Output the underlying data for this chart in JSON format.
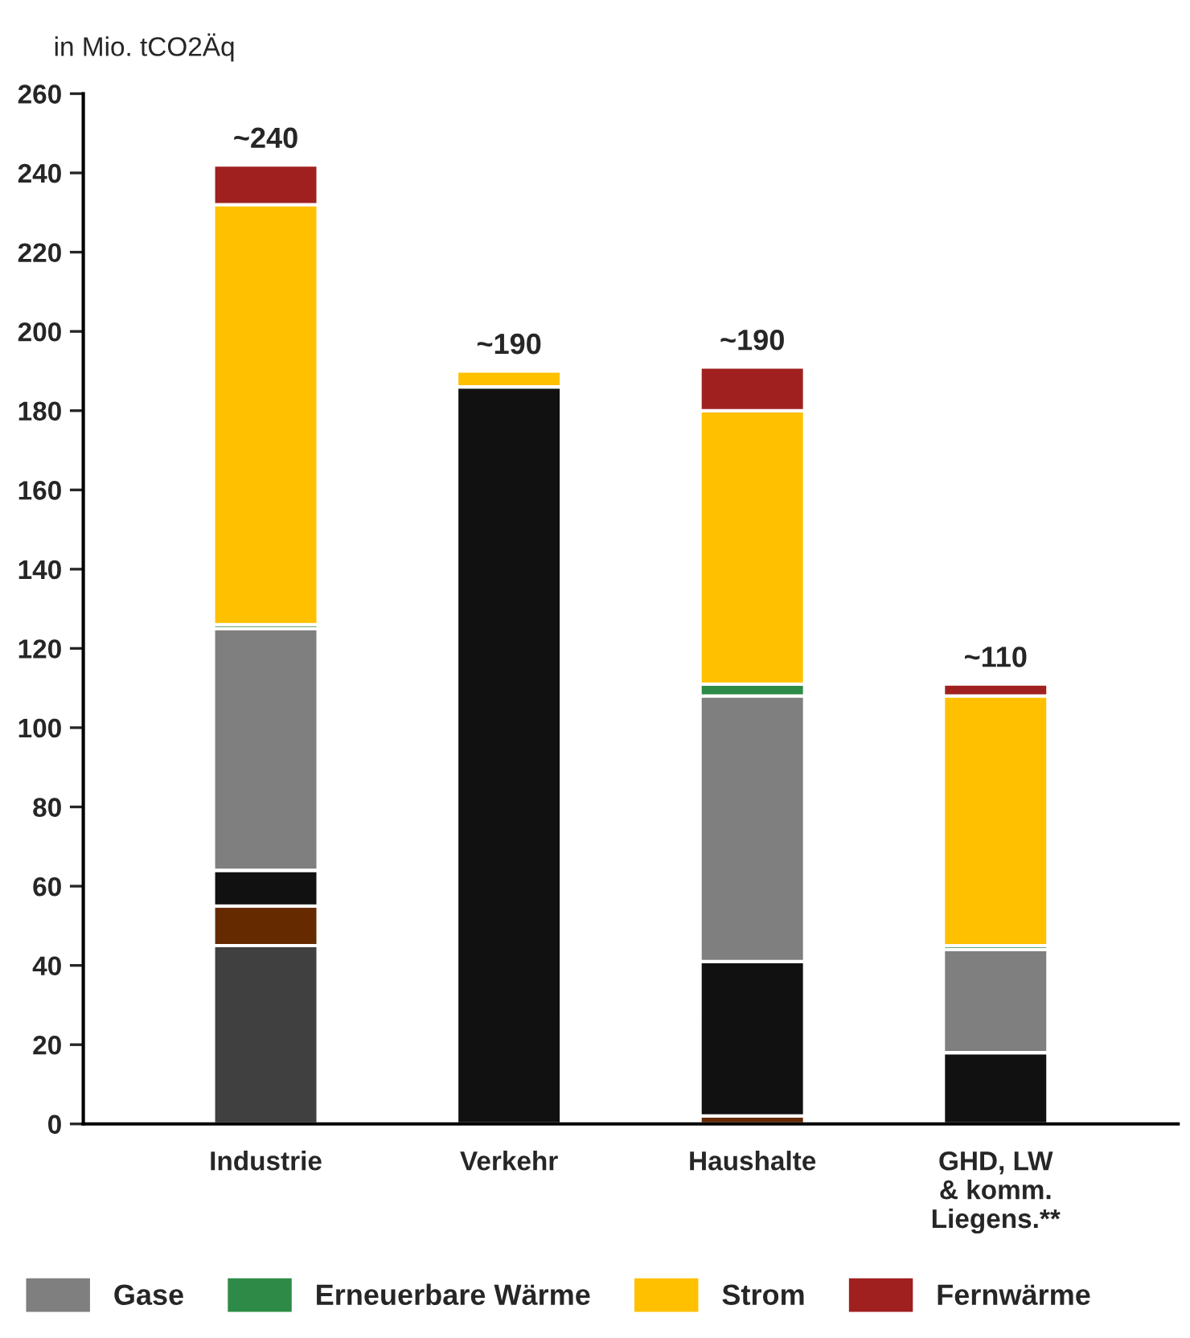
{
  "chart_data": {
    "type": "bar",
    "stacked": true,
    "ylabel": "in Mio. tCO2Äq",
    "categories": [
      "Industrie",
      "Verkehr",
      "Haushalte",
      "GHD, LW\n& komm.\nLiegens.**"
    ],
    "series": [
      {
        "color": "#404040",
        "values": [
          45,
          null,
          null,
          null
        ]
      },
      {
        "color": "#662a00",
        "values": [
          10,
          null,
          2,
          null
        ]
      },
      {
        "color": "#111111",
        "values": [
          9,
          186,
          39,
          18
        ]
      },
      {
        "name": "Gase",
        "color": "#7f7f7f",
        "values": [
          61,
          null,
          67,
          26
        ]
      },
      {
        "name": "Erneuerbare Wärme",
        "color": "#2e8b47",
        "values": [
          1,
          null,
          3,
          1
        ]
      },
      {
        "name": "Strom",
        "color": "#ffc000",
        "values": [
          106,
          4,
          69,
          63
        ]
      },
      {
        "name": "Fernwärme",
        "color": "#a02020",
        "values": [
          10,
          null,
          11,
          3
        ]
      }
    ],
    "totals": [
      "~240",
      "~190",
      "~190",
      "~110"
    ],
    "ylim": [
      0,
      260
    ],
    "yticks": [
      0,
      20,
      40,
      60,
      80,
      100,
      120,
      140,
      160,
      180,
      200,
      220,
      240,
      260
    ],
    "grid": false,
    "legend": "bottom"
  }
}
